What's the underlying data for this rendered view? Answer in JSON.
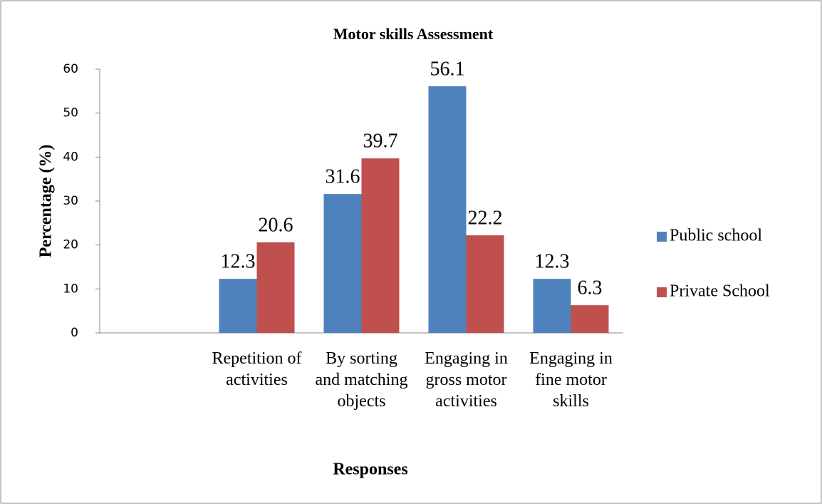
{
  "chart_data": {
    "type": "bar",
    "title": "Motor skills Assessment",
    "y_label": "Percentage (%)",
    "x_label": "Responses",
    "categories": [
      null,
      "Repetition of activities",
      "By sorting and matching objects",
      "Engaging in gross motor activities",
      "Engaging in fine motor skills"
    ],
    "series": [
      {
        "name": "Public school",
        "color": "#4f81bd",
        "values": [
          null,
          12.3,
          31.6,
          56.1,
          12.3
        ]
      },
      {
        "name": "Private School",
        "color": "#c0504d",
        "values": [
          null,
          20.6,
          39.7,
          22.2,
          6.3
        ]
      }
    ],
    "ylim": [
      0,
      60
    ],
    "yticks": [
      0,
      10,
      20,
      30,
      40,
      50,
      60
    ],
    "legend": "right"
  }
}
